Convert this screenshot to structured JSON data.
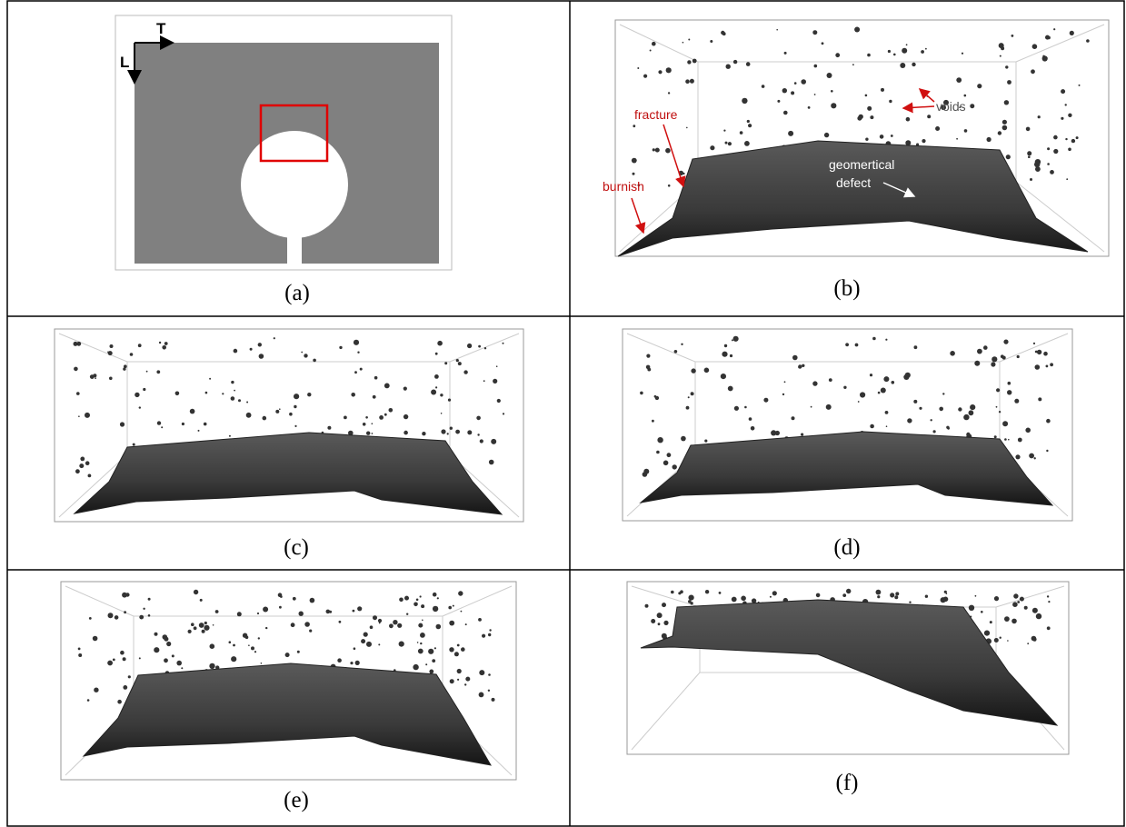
{
  "panels": [
    {
      "label": "(a)"
    },
    {
      "label": "(b)"
    },
    {
      "label": "(c)"
    },
    {
      "label": "(d)"
    },
    {
      "label": "(e)"
    },
    {
      "label": "(f)"
    }
  ],
  "panel_a": {
    "axis_t": "T",
    "axis_l": "L"
  },
  "panel_b": {
    "fracture": "fracture",
    "voids": "voids",
    "burnish": "burnish",
    "defect_line1": "geomertical",
    "defect_line2": "defect"
  }
}
